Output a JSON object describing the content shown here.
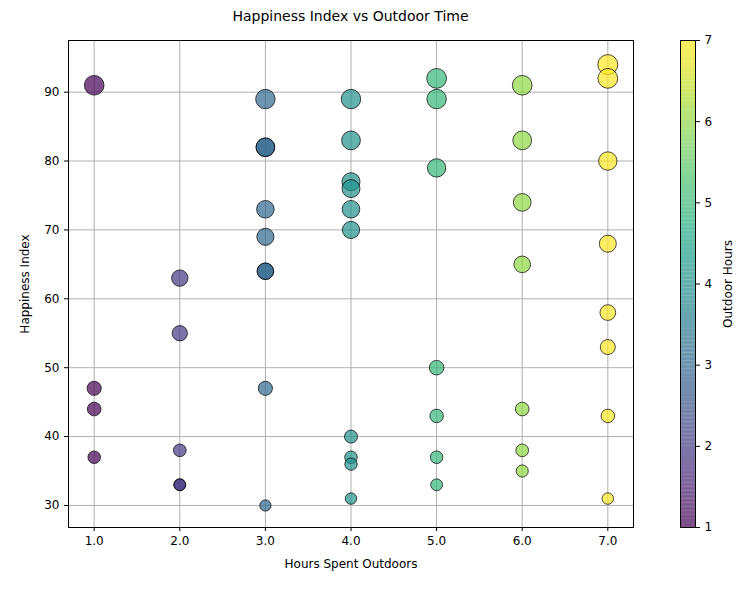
{
  "chart_data": {
    "type": "scatter",
    "title": "Happiness Index vs Outdoor Time",
    "x_label": "Hours Spent Outdoors",
    "y_label": "Happiness Index",
    "x": [
      1,
      1,
      1,
      1,
      2,
      2,
      2,
      2,
      2,
      3,
      3,
      3,
      3,
      3,
      3,
      3,
      3,
      3,
      4,
      4,
      4,
      4,
      4,
      4,
      4,
      4,
      4,
      4,
      5,
      5,
      5,
      5,
      5,
      5,
      5,
      6,
      6,
      6,
      6,
      6,
      6,
      6,
      7,
      7,
      7,
      7,
      7,
      7,
      7,
      7
    ],
    "values": [
      91,
      47,
      44,
      37,
      63,
      55,
      38,
      33,
      33,
      89,
      82,
      82,
      73,
      69,
      64,
      64,
      47,
      30,
      89,
      83,
      77,
      76,
      73,
      70,
      40,
      37,
      36,
      31,
      92,
      89,
      79,
      50,
      43,
      37,
      33,
      91,
      83,
      74,
      65,
      44,
      38,
      35,
      94,
      92,
      80,
      68,
      58,
      53,
      43,
      31
    ],
    "sizes": [
      91,
      47,
      44,
      37,
      63,
      55,
      38,
      33,
      33,
      89,
      82,
      82,
      73,
      69,
      64,
      64,
      47,
      30,
      89,
      83,
      77,
      76,
      73,
      70,
      40,
      37,
      36,
      31,
      92,
      89,
      79,
      50,
      43,
      37,
      33,
      91,
      83,
      74,
      65,
      44,
      38,
      35,
      94,
      92,
      80,
      68,
      58,
      53,
      43,
      31
    ],
    "color": "viridis",
    "xlim": [
      0.7,
      7.3
    ],
    "xticks": [
      1,
      2,
      3,
      4,
      5,
      6,
      7
    ],
    "ylim": [
      26.8,
      97.5
    ],
    "yticks": [
      30,
      40,
      50,
      60,
      70,
      80,
      90
    ],
    "grid": true,
    "colorbar": {
      "label": "Outdoor Hours",
      "range": [
        1,
        7
      ],
      "ticks": [
        1,
        2,
        3,
        4,
        5,
        6,
        7
      ]
    }
  }
}
